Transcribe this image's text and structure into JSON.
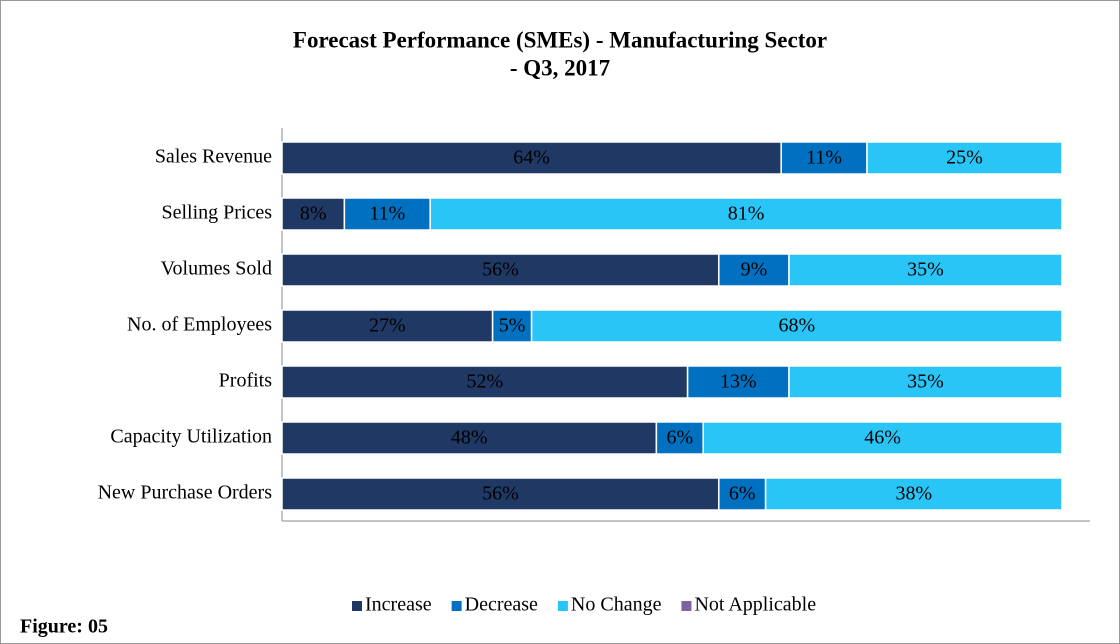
{
  "chart_data": {
    "type": "stacked_bar_horizontal",
    "title": [
      "Forecast Performance (SMEs) - Manufacturing Sector",
      "- Q3, 2017"
    ],
    "categories": [
      "Sales Revenue",
      "Selling Prices",
      "Volumes Sold",
      "No. of Employees",
      "Profits",
      "Capacity Utilization",
      "New Purchase Orders"
    ],
    "series": [
      {
        "name": "Increase",
        "color": "#1f3864",
        "values": [
          64,
          8,
          56,
          27,
          52,
          48,
          56
        ],
        "value_labels": [
          "64%",
          "8%",
          "56%",
          "27%",
          "52%",
          "48%",
          "56%"
        ]
      },
      {
        "name": "Decrease",
        "color": "#0070c0",
        "values": [
          11,
          11,
          9,
          5,
          13,
          6,
          6
        ],
        "value_labels": [
          "11%",
          "11%",
          "9%",
          "5%",
          "13%",
          "6%",
          "6%"
        ]
      },
      {
        "name": "No Change",
        "color": "#29c5f6",
        "values": [
          25,
          81,
          35,
          68,
          35,
          46,
          38
        ],
        "value_labels": [
          "25%",
          "81%",
          "35%",
          "68%",
          "35%",
          "46%",
          "38%"
        ]
      },
      {
        "name": "Not Applicable",
        "color": "#8064a2",
        "values": [
          0,
          0,
          0,
          0,
          0,
          0,
          0
        ]
      }
    ],
    "xlim": [
      0,
      100
    ],
    "legend": "bottom",
    "caption": "Figure: 05"
  }
}
